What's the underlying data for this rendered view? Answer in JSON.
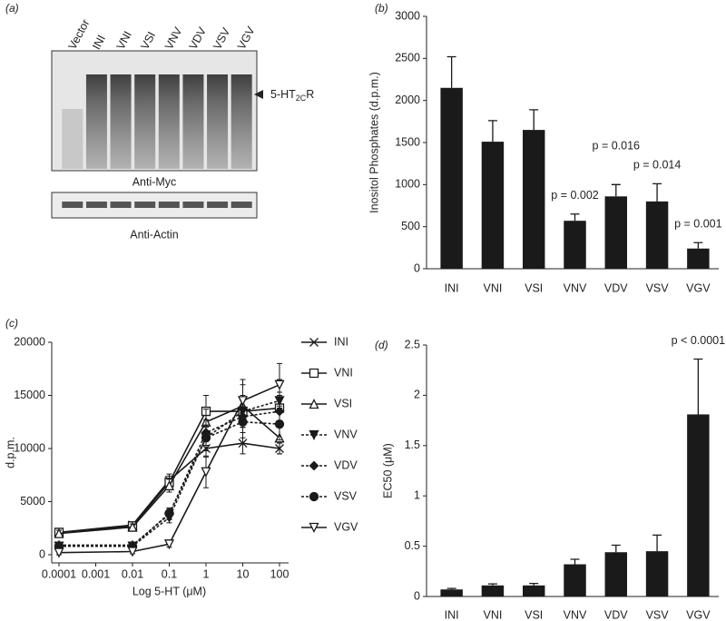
{
  "blot": {
    "panel": "(a)",
    "lanes": [
      "Vector",
      "INI",
      "VNI",
      "VSI",
      "VNV",
      "VDV",
      "VSV",
      "VGV"
    ],
    "band_label": {
      "text": "5-HT",
      "subscript": "2C",
      "suffix": "R"
    },
    "captions": [
      "Anti-Myc",
      "Anti-Actin"
    ]
  },
  "chart_data": [
    {
      "type": "bar",
      "panel": "(b)",
      "ylabel": "Inositol Phosphates (d.p.m.)",
      "categories": [
        "INI",
        "VNI",
        "VSI",
        "VNV",
        "VDV",
        "VSV",
        "VGV"
      ],
      "values": [
        2150,
        1510,
        1650,
        570,
        860,
        800,
        240
      ],
      "errors": [
        370,
        250,
        240,
        80,
        140,
        210,
        70
      ],
      "color": "#1a1a1a",
      "ylim": [
        0,
        3000
      ],
      "yticks": [
        0,
        500,
        1000,
        1500,
        2000,
        2500,
        3000
      ],
      "annotations": [
        {
          "text": "p = 0.002",
          "category": "VNV"
        },
        {
          "text": "p = 0.016",
          "category": "VDV"
        },
        {
          "text": "p = 0.014",
          "category": "VSV"
        },
        {
          "text": "p = 0.001",
          "category": "VGV"
        }
      ]
    },
    {
      "type": "line",
      "panel": "(c)",
      "xlabel": "Log 5-HT (μM)",
      "ylabel": "d.p.m.",
      "x": [
        0.0001,
        0.01,
        0.1,
        1,
        10,
        100
      ],
      "xscale": "log",
      "xlim": [
        0.0001,
        100
      ],
      "xticks": [
        0.0001,
        0.001,
        0.01,
        0.1,
        1,
        10,
        100
      ],
      "ylim": [
        0,
        20000
      ],
      "yticks": [
        0,
        5000,
        10000,
        15000,
        20000
      ],
      "legend": "right",
      "series": [
        {
          "name": "INI",
          "color": "#1a1a1a",
          "marker": "x",
          "line_style": "solid",
          "values": [
            2100,
            2800,
            7000,
            10000,
            10500,
            10000
          ],
          "errors": [
            300,
            300,
            600,
            800,
            1000,
            500
          ]
        },
        {
          "name": "VNI",
          "color": "#1a1a1a",
          "marker": "square",
          "line_style": "solid",
          "values": [
            2100,
            2700,
            6800,
            13500,
            13500,
            13800
          ],
          "errors": [
            300,
            300,
            600,
            1500,
            1500,
            1500
          ]
        },
        {
          "name": "VSI",
          "color": "#1a1a1a",
          "marker": "triangle",
          "line_style": "solid",
          "values": [
            2000,
            2600,
            6500,
            12500,
            14000,
            11000
          ],
          "errors": [
            300,
            300,
            600,
            1200,
            2000,
            1500
          ]
        },
        {
          "name": "VNV",
          "color": "#1a1a1a",
          "marker": "triangle-down",
          "line_style": "dotted",
          "values": [
            800,
            800,
            3500,
            11000,
            13500,
            14500
          ],
          "errors": [
            200,
            200,
            500,
            1200,
            1500,
            2000
          ]
        },
        {
          "name": "VDV",
          "color": "#1a1a1a",
          "marker": "diamond",
          "line_style": "dotted",
          "values": [
            900,
            900,
            3800,
            11500,
            13000,
            13500
          ],
          "errors": [
            200,
            200,
            500,
            1200,
            1500,
            1500
          ]
        },
        {
          "name": "VSV",
          "color": "#1a1a1a",
          "marker": "circle",
          "line_style": "dotted",
          "values": [
            800,
            800,
            3900,
            11000,
            12500,
            12300
          ],
          "errors": [
            200,
            200,
            500,
            1200,
            1500,
            1500
          ]
        },
        {
          "name": "VGV",
          "color": "#1a1a1a",
          "marker": "triangle-down-open",
          "line_style": "solid",
          "values": [
            200,
            300,
            1000,
            7800,
            14500,
            16000
          ],
          "errors": [
            200,
            200,
            300,
            1500,
            2000,
            2000
          ]
        }
      ]
    },
    {
      "type": "bar",
      "panel": "(d)",
      "ylabel": "EC50 (μM)",
      "categories": [
        "INI",
        "VNI",
        "VSI",
        "VNV",
        "VDV",
        "VSV",
        "VGV"
      ],
      "values": [
        0.07,
        0.11,
        0.11,
        0.32,
        0.44,
        0.45,
        1.81
      ],
      "errors": [
        0.01,
        0.015,
        0.02,
        0.05,
        0.07,
        0.16,
        0.55
      ],
      "color": "#1a1a1a",
      "ylim": [
        0,
        2.5
      ],
      "yticks": [
        0,
        0.5,
        1,
        1.5,
        2,
        2.5
      ],
      "annotations": [
        {
          "text": "p < 0.0001",
          "category": "VGV"
        }
      ]
    }
  ]
}
